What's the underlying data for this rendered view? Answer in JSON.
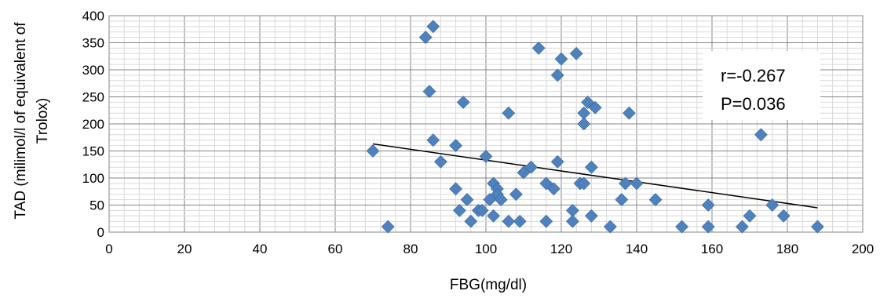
{
  "chart_data": {
    "type": "scatter",
    "xlabel": "FBG(mg/dl)",
    "ylabel_lines": [
      "TAD (milimol/l of equivalent of",
      "Trolox)"
    ],
    "xlim": [
      0,
      200
    ],
    "ylim": [
      0,
      400
    ],
    "x_ticks": [
      0,
      20,
      40,
      60,
      80,
      100,
      120,
      140,
      160,
      180,
      200
    ],
    "y_ticks": [
      0,
      50,
      100,
      150,
      200,
      250,
      300,
      350,
      400
    ],
    "grid": true,
    "marker_color": "#4f81bd",
    "trendline_color": "#000000",
    "annotation": [
      "r=-0.267",
      "P=0.036"
    ],
    "trendline": {
      "x": [
        70,
        188
      ],
      "y": [
        163,
        45
      ]
    },
    "points": [
      [
        70,
        150
      ],
      [
        74,
        10
      ],
      [
        84,
        360
      ],
      [
        85,
        260
      ],
      [
        86,
        380
      ],
      [
        86,
        170
      ],
      [
        88,
        130
      ],
      [
        92,
        160
      ],
      [
        92,
        80
      ],
      [
        93,
        40
      ],
      [
        94,
        240
      ],
      [
        95,
        60
      ],
      [
        96,
        20
      ],
      [
        98,
        40
      ],
      [
        99,
        40
      ],
      [
        100,
        140
      ],
      [
        101,
        60
      ],
      [
        102,
        90
      ],
      [
        102,
        30
      ],
      [
        103,
        80
      ],
      [
        103,
        70
      ],
      [
        104,
        60
      ],
      [
        106,
        220
      ],
      [
        106,
        20
      ],
      [
        108,
        70
      ],
      [
        109,
        20
      ],
      [
        110,
        110
      ],
      [
        112,
        120
      ],
      [
        114,
        340
      ],
      [
        116,
        90
      ],
      [
        116,
        20
      ],
      [
        118,
        80
      ],
      [
        119,
        290
      ],
      [
        119,
        130
      ],
      [
        120,
        320
      ],
      [
        123,
        40
      ],
      [
        123,
        20
      ],
      [
        124,
        330
      ],
      [
        125,
        90
      ],
      [
        126,
        220
      ],
      [
        126,
        200
      ],
      [
        126,
        90
      ],
      [
        127,
        240
      ],
      [
        128,
        120
      ],
      [
        128,
        30
      ],
      [
        129,
        230
      ],
      [
        133,
        10
      ],
      [
        136,
        60
      ],
      [
        137,
        90
      ],
      [
        138,
        220
      ],
      [
        140,
        90
      ],
      [
        145,
        60
      ],
      [
        152,
        10
      ],
      [
        159,
        50
      ],
      [
        159,
        10
      ],
      [
        168,
        10
      ],
      [
        170,
        30
      ],
      [
        173,
        180
      ],
      [
        176,
        50
      ],
      [
        179,
        30
      ],
      [
        188,
        10
      ]
    ]
  }
}
